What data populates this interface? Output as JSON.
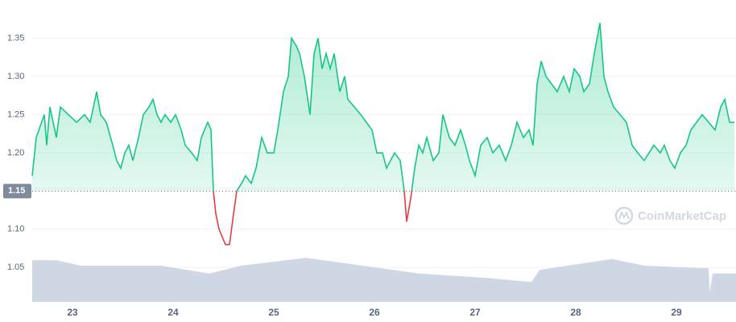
{
  "chart_data": {
    "type": "line",
    "x": [
      22.6,
      22.64,
      22.72,
      22.744,
      22.776,
      22.84,
      22.88,
      22.96,
      23.04,
      23.12,
      23.176,
      23.24,
      23.28,
      23.336,
      23.4,
      23.44,
      23.48,
      23.52,
      23.56,
      23.6,
      23.656,
      23.704,
      23.76,
      23.8,
      23.84,
      23.88,
      23.92,
      23.976,
      24.024,
      24.08,
      24.12,
      24.184,
      24.24,
      24.28,
      24.344,
      24.376,
      24.4,
      24.424,
      24.456,
      24.488,
      24.52,
      24.56,
      24.6,
      24.632,
      24.68,
      24.72,
      24.776,
      24.824,
      24.88,
      24.936,
      25,
      25.04,
      25.096,
      25.144,
      25.176,
      25.224,
      25.256,
      25.304,
      25.36,
      25.4,
      25.44,
      25.48,
      25.52,
      25.56,
      25.6,
      25.656,
      25.704,
      25.736,
      25.8,
      25.864,
      25.92,
      25.976,
      26.024,
      26.08,
      26.12,
      26.16,
      26.2,
      26.256,
      26.296,
      26.32,
      26.36,
      26.4,
      26.44,
      26.48,
      26.52,
      26.584,
      26.64,
      26.68,
      26.744,
      26.8,
      26.856,
      26.904,
      26.944,
      27,
      27.056,
      27.12,
      27.176,
      27.24,
      27.304,
      27.36,
      27.416,
      27.48,
      27.536,
      27.576,
      27.616,
      27.656,
      27.704,
      27.76,
      27.816,
      27.88,
      27.936,
      27.984,
      28.04,
      28.08,
      28.136,
      28.184,
      28.24,
      28.28,
      28.32,
      28.376,
      28.44,
      28.504,
      28.56,
      28.616,
      28.68,
      28.728,
      28.776,
      28.84,
      28.88,
      28.936,
      28.984,
      29.04,
      29.096,
      29.144,
      29.2,
      29.256,
      29.32,
      29.384,
      29.44,
      29.48,
      29.528,
      29.576
    ],
    "series": [
      {
        "color": "#16c784",
        "color_below": "#ea3943",
        "values": [
          1.17,
          1.22,
          1.25,
          1.21,
          1.26,
          1.22,
          1.26,
          1.25,
          1.24,
          1.25,
          1.24,
          1.28,
          1.25,
          1.24,
          1.21,
          1.19,
          1.18,
          1.2,
          1.21,
          1.19,
          1.22,
          1.25,
          1.26,
          1.27,
          1.25,
          1.24,
          1.25,
          1.24,
          1.25,
          1.23,
          1.21,
          1.2,
          1.19,
          1.22,
          1.24,
          1.23,
          1.15,
          1.12,
          1.1,
          1.09,
          1.08,
          1.08,
          1.12,
          1.15,
          1.16,
          1.17,
          1.16,
          1.18,
          1.22,
          1.2,
          1.2,
          1.23,
          1.28,
          1.3,
          1.35,
          1.34,
          1.33,
          1.3,
          1.25,
          1.33,
          1.35,
          1.31,
          1.33,
          1.31,
          1.33,
          1.28,
          1.3,
          1.27,
          1.26,
          1.25,
          1.24,
          1.23,
          1.2,
          1.2,
          1.18,
          1.19,
          1.2,
          1.19,
          1.15,
          1.11,
          1.14,
          1.18,
          1.21,
          1.2,
          1.22,
          1.19,
          1.2,
          1.25,
          1.22,
          1.21,
          1.23,
          1.21,
          1.19,
          1.17,
          1.21,
          1.22,
          1.2,
          1.21,
          1.19,
          1.21,
          1.24,
          1.22,
          1.23,
          1.21,
          1.29,
          1.32,
          1.3,
          1.29,
          1.28,
          1.3,
          1.28,
          1.31,
          1.3,
          1.28,
          1.29,
          1.33,
          1.37,
          1.3,
          1.28,
          1.26,
          1.25,
          1.24,
          1.21,
          1.2,
          1.19,
          1.2,
          1.21,
          1.2,
          1.21,
          1.19,
          1.18,
          1.2,
          1.21,
          1.23,
          1.24,
          1.25,
          1.24,
          1.23,
          1.26,
          1.27,
          1.24,
          1.24
        ]
      }
    ],
    "baseline": 1.15,
    "volume": {
      "color": "#cfd6e4",
      "ylim": [
        0,
        100
      ],
      "x": [
        22.6,
        22.84,
        23.08,
        23.88,
        24.36,
        24.68,
        25.32,
        25.88,
        26.44,
        27.08,
        27.56,
        27.64,
        28.36,
        28.68,
        29.24,
        29.32,
        29.33,
        29.36,
        29.592
      ],
      "values": [
        69,
        69,
        60,
        60,
        47,
        60,
        73,
        60,
        47,
        40,
        33,
        53,
        71,
        60,
        56,
        56,
        16,
        47,
        47
      ]
    },
    "xlim": [
      22.6,
      29.592
    ],
    "xticks": [
      23,
      24,
      25,
      26,
      27,
      28,
      29
    ],
    "ylim": [
      1.005,
      1.4
    ],
    "yticks": [
      {
        "value": 1.05,
        "label": "1.05"
      },
      {
        "value": 1.1,
        "label": "1.10"
      },
      {
        "value": 1.2,
        "label": "1.20"
      },
      1.25,
      {
        "value": 1.3,
        "label": "1.30"
      },
      1.35
    ],
    "grid": true,
    "watermark": "CoinMarketCap"
  }
}
